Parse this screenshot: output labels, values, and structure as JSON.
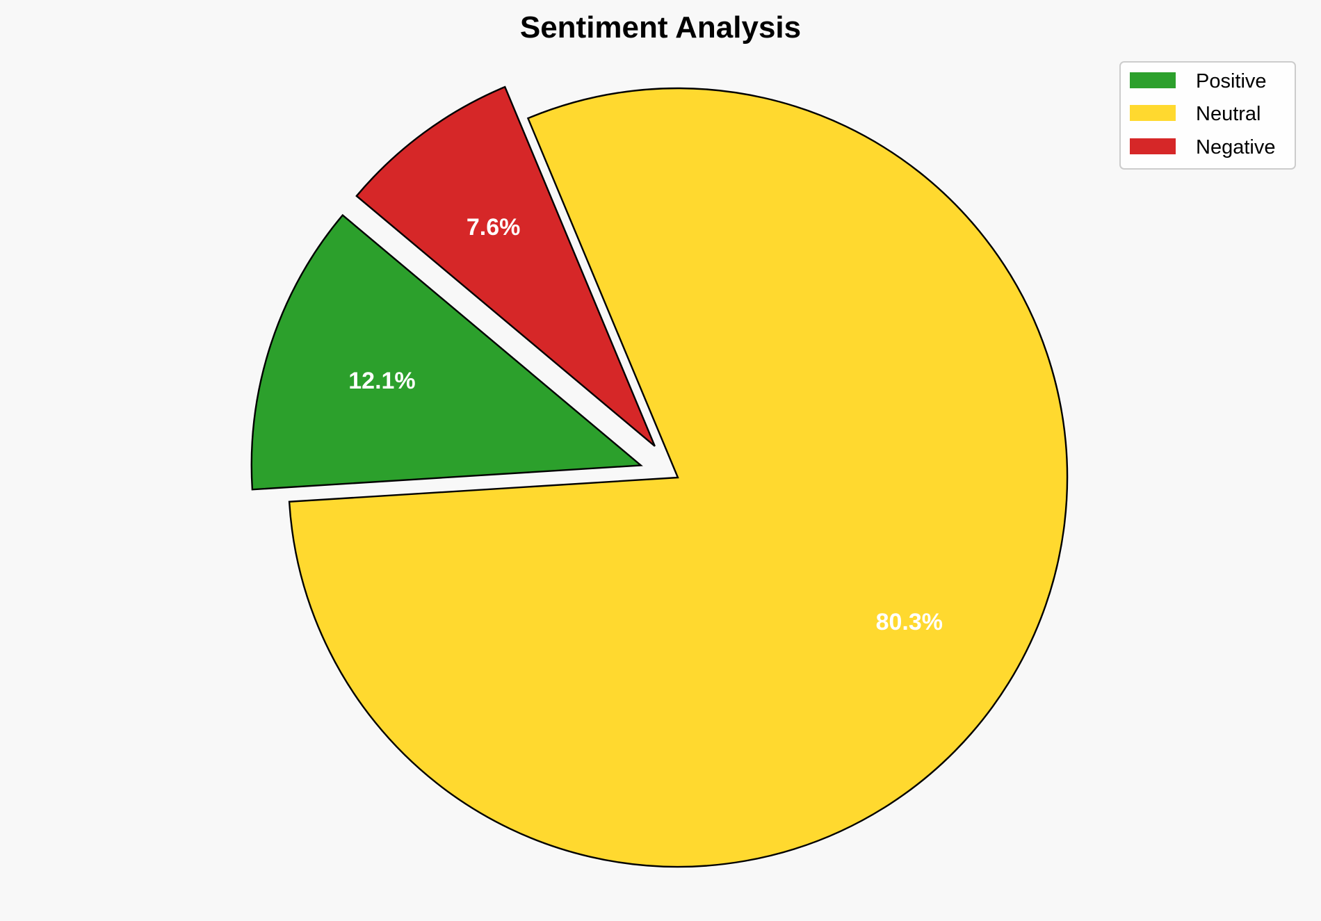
{
  "chart_data": {
    "type": "pie",
    "title": "Sentiment Analysis",
    "categories": [
      "Positive",
      "Neutral",
      "Negative"
    ],
    "values": [
      12.1,
      80.3,
      7.6
    ],
    "labels": [
      "12.1%",
      "80.3%",
      "7.6%"
    ],
    "colors": [
      "#2ca02c",
      "#ffd92f",
      "#d62728"
    ],
    "explode": [
      0.1,
      0,
      0.1
    ],
    "start_angle": 140,
    "legend": {
      "placement": "top-right",
      "entries": [
        "Positive",
        "Neutral",
        "Negative"
      ]
    },
    "background": "#f8f8f8",
    "edge_color": "#000000"
  }
}
